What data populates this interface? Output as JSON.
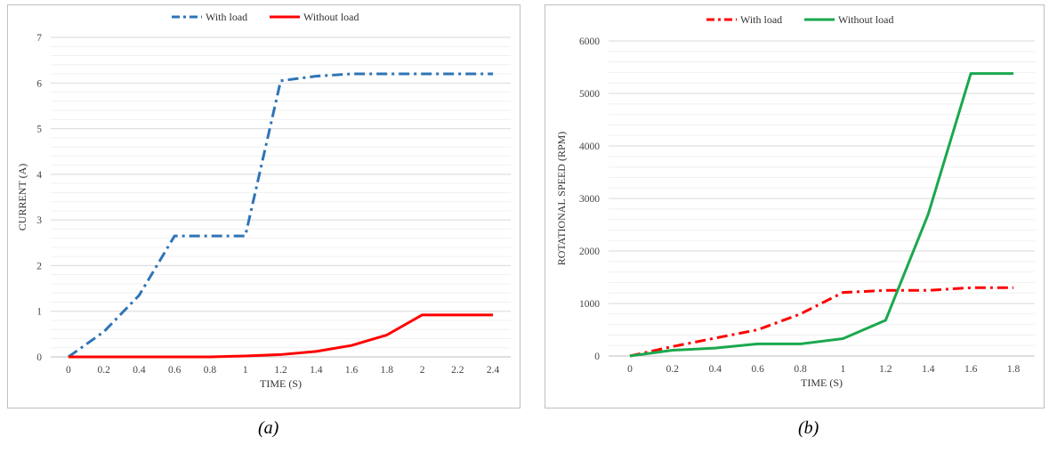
{
  "captions": {
    "a": "(a)",
    "b": "(b)"
  },
  "chart_data": [
    {
      "type": "line",
      "xlabel": "TIME (S)",
      "ylabel": "CURRENT (A)",
      "x": [
        0,
        0.2,
        0.4,
        0.6,
        0.8,
        1,
        1.2,
        1.4,
        1.6,
        1.8,
        2,
        2.2,
        2.4
      ],
      "x_tick_labels": [
        "0",
        "0.2",
        "0.4",
        "0.6",
        "0.8",
        "1",
        "1.2",
        "1.4",
        "1.6",
        "1.8",
        "2",
        "2.2",
        "2.4"
      ],
      "y_tick_labels": [
        "0",
        "1",
        "2",
        "3",
        "4",
        "5",
        "6",
        "7"
      ],
      "ylim": [
        0,
        7
      ],
      "yticks": [
        0,
        1,
        2,
        3,
        4,
        5,
        6,
        7
      ],
      "minor_grid": true,
      "legend_position": "top",
      "series": [
        {
          "name": "With load",
          "color": "#2e75b6",
          "style": "dashdot",
          "values": [
            0,
            0.55,
            1.35,
            2.65,
            2.65,
            2.65,
            6.05,
            6.15,
            6.2,
            6.2,
            6.2,
            6.2,
            6.2
          ]
        },
        {
          "name": "Without load",
          "color": "#ff0000",
          "style": "solid",
          "values": [
            0,
            0,
            0,
            0,
            0,
            0.02,
            0.05,
            0.12,
            0.25,
            0.48,
            0.92,
            0.92,
            0.92
          ]
        }
      ]
    },
    {
      "type": "line",
      "xlabel": "TIME (S)",
      "ylabel": "ROTATIONAL SPEED (RPM)",
      "x": [
        0,
        0.2,
        0.4,
        0.6,
        0.8,
        1,
        1.2,
        1.4,
        1.6,
        1.8
      ],
      "x_tick_labels": [
        "0",
        "0.2",
        "0.4",
        "0.6",
        "0.8",
        "1",
        "1.2",
        "1.4",
        "1.6",
        "1.8"
      ],
      "y_tick_labels": [
        "0",
        "1000",
        "2000",
        "3000",
        "4000",
        "5000",
        "6000"
      ],
      "ylim": [
        0,
        6000
      ],
      "yticks": [
        0,
        1000,
        2000,
        3000,
        4000,
        5000,
        6000
      ],
      "minor_grid": true,
      "legend_position": "top",
      "series": [
        {
          "name": "With load",
          "color": "#ff0000",
          "style": "dashdot",
          "values": [
            0,
            180,
            340,
            500,
            800,
            1210,
            1250,
            1250,
            1300,
            1300
          ]
        },
        {
          "name": "Without load",
          "color": "#1aa84e",
          "style": "solid",
          "values": [
            0,
            110,
            150,
            230,
            230,
            330,
            680,
            2700,
            5380,
            5380
          ]
        }
      ]
    }
  ]
}
